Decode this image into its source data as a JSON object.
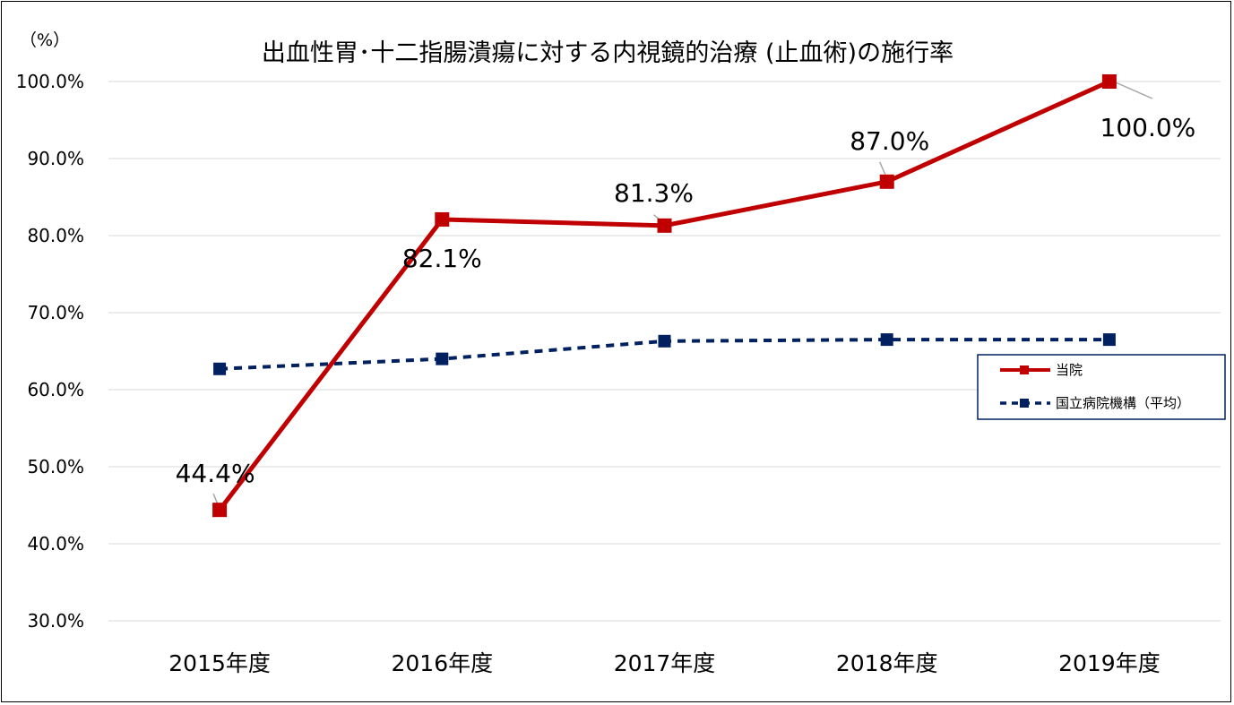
{
  "chart_data": {
    "type": "line",
    "title": "出血性胃･十二指腸潰瘍に対する内視鏡的治療 (止血術)の施行率",
    "unit_label": "（%）",
    "categories": [
      "2015年度",
      "2016年度",
      "2017年度",
      "2018年度",
      "2019年度"
    ],
    "y_ticks": [
      "30.0%",
      "40.0%",
      "50.0%",
      "60.0%",
      "70.0%",
      "80.0%",
      "90.0%",
      "100.0%"
    ],
    "ylim": [
      30,
      100
    ],
    "grid": true,
    "legend_position": "right",
    "series": [
      {
        "name": "当院",
        "values": [
          44.4,
          82.1,
          81.3,
          87.0,
          100.0
        ],
        "data_labels": [
          "44.4%",
          "82.1%",
          "81.3%",
          "87.0%",
          "100.0%"
        ],
        "color": "#C00000",
        "line_style": "solid",
        "marker": "square"
      },
      {
        "name": "国立病院機構（平均）",
        "values": [
          62.7,
          64.0,
          66.3,
          66.5,
          66.5
        ],
        "color": "#002060",
        "line_style": "dashed",
        "marker": "square"
      }
    ]
  }
}
